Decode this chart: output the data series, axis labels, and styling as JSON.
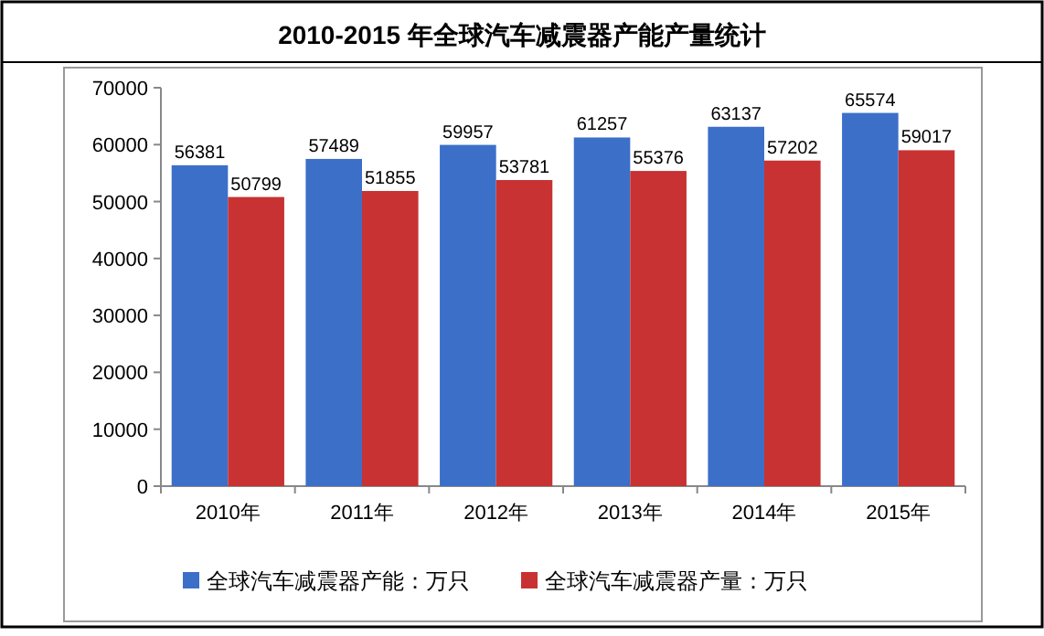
{
  "chart_data": {
    "type": "bar",
    "title": "2010-2015 年全球汽车减震器产能产量统计",
    "categories": [
      "2010年",
      "2011年",
      "2012年",
      "2013年",
      "2014年",
      "2015年"
    ],
    "series": [
      {
        "name": "全球汽车减震器产能：万只",
        "color": "#3c6fc8",
        "values": [
          56381,
          57489,
          59957,
          61257,
          63137,
          65574
        ]
      },
      {
        "name": "全球汽车减震器产量：万只",
        "color": "#c83232",
        "values": [
          50799,
          51855,
          53781,
          55376,
          57202,
          59017
        ]
      }
    ],
    "ylim": [
      0,
      70000
    ],
    "yticks": [
      0,
      10000,
      20000,
      30000,
      40000,
      50000,
      60000,
      70000
    ],
    "grid": false,
    "legend": "bottom",
    "data_labels": true
  }
}
